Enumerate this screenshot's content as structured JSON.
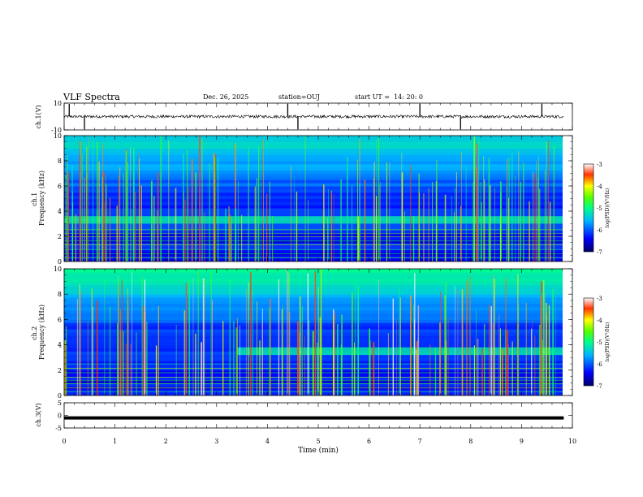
{
  "header": {
    "title": "VLF Spectra",
    "date": "Dec. 26, 2025",
    "station": "station=OUJ",
    "start_label": "start  UT  =",
    "start_time": "14: 20: 0"
  },
  "colorbar": {
    "label": "log(PSD)(V²/Hz)",
    "ticks": [
      "-3",
      "-4",
      "-5",
      "-6",
      "-7"
    ]
  },
  "chart_data": [
    {
      "type": "line",
      "title": "ch.1 waveform",
      "ylabel": "ch.1(V)",
      "ylim": [
        -10,
        10
      ],
      "y_ticks": [
        "10",
        "-10"
      ],
      "baseline": 0,
      "description_spikes_min": [
        0.1,
        0.4,
        4.4,
        4.6,
        7.0,
        7.8,
        9.4
      ],
      "x_range_min": [
        0,
        9.83
      ],
      "color": "#000000"
    },
    {
      "type": "heatmap",
      "title": "ch.1 spectrogram",
      "ylabel": "ch.1\nFrequency  (kHz)",
      "ylabel_lines": [
        "ch.1",
        "Frequency  (kHz)"
      ],
      "ylim": [
        0,
        10
      ],
      "y_ticks": [
        "0",
        "2",
        "4",
        "6",
        "8",
        "10"
      ],
      "x_range_min": [
        0,
        9.83
      ],
      "color_range_logpsd": [
        -7,
        -3
      ],
      "band_khz": [
        3.0,
        3.6
      ],
      "band_start_min": 0
    },
    {
      "type": "heatmap",
      "title": "ch.2 spectrogram",
      "ylabel": "ch.2\nFrequency  (kHz)",
      "ylabel_lines": [
        "ch.2",
        "Frequency  (kHz)"
      ],
      "ylim": [
        0,
        10
      ],
      "y_ticks": [
        "0",
        "2",
        "4",
        "6",
        "8",
        "10"
      ],
      "x_range_min": [
        0,
        9.83
      ],
      "color_range_logpsd": [
        -7,
        -3
      ],
      "band_khz": [
        3.2,
        3.8
      ],
      "band_start_min": 3.4
    },
    {
      "type": "line",
      "title": "ch.3 waveform",
      "ylabel": "ch.3(V)",
      "ylim": [
        -5,
        5
      ],
      "y_ticks": [
        "5",
        "0",
        "-5"
      ],
      "level": -1,
      "x_range_min": [
        0,
        9.83
      ],
      "color": "#000000"
    }
  ],
  "xaxis": {
    "label": "Time  (min)",
    "ticks": [
      "0",
      "1",
      "2",
      "3",
      "4",
      "5",
      "6",
      "7",
      "8",
      "9",
      "10"
    ],
    "range": [
      0,
      10
    ]
  }
}
